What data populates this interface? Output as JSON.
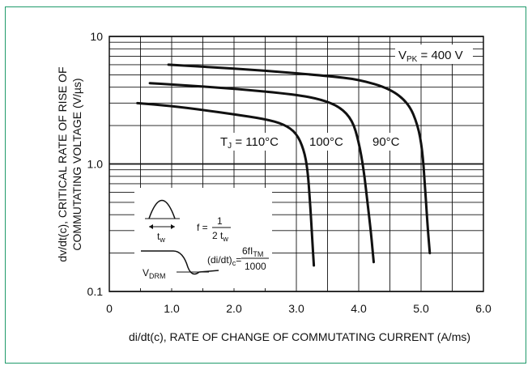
{
  "chart_data": {
    "type": "line",
    "x_scale": "linear",
    "y_scale": "log",
    "xlim": [
      0,
      6.0
    ],
    "ylim": [
      0.1,
      10
    ],
    "x_ticks": [
      "0",
      "1.0",
      "2.0",
      "3.0",
      "4.0",
      "5.0",
      "6.0"
    ],
    "y_ticks": [
      "0.1",
      "1.0",
      "10"
    ],
    "xlabel": "di/dt(c), RATE OF CHANGE OF COMMUTATING CURRENT (A/ms)",
    "ylabel_line1": "dv/dt(c), CRITICAL RATE OF RISE OF",
    "ylabel_line2": "COMMUTATING VOLTAGE (V/µs)",
    "grid": true,
    "annotation": "VPK = 400 V",
    "series": [
      {
        "name": "TJ = 110°C",
        "label_main": "T",
        "label_sub": "J",
        "label_rest": " = 110°C",
        "x": [
          0.45,
          1.0,
          1.5,
          2.0,
          2.5,
          2.8,
          3.0,
          3.12,
          3.18,
          3.22,
          3.25,
          3.28
        ],
        "y": [
          3.0,
          2.85,
          2.65,
          2.45,
          2.25,
          2.05,
          1.75,
          1.3,
          0.9,
          0.5,
          0.28,
          0.16
        ]
      },
      {
        "name": "100°C",
        "label_main": "100°C",
        "x": [
          0.65,
          1.0,
          2.0,
          3.0,
          3.4,
          3.7,
          3.9,
          4.0,
          4.08,
          4.14,
          4.2,
          4.24
        ],
        "y": [
          4.3,
          4.2,
          3.9,
          3.5,
          3.2,
          2.8,
          2.2,
          1.5,
          0.9,
          0.5,
          0.28,
          0.17
        ]
      },
      {
        "name": "90°C",
        "label_main": "90°C",
        "x": [
          0.95,
          1.5,
          2.5,
          3.5,
          4.0,
          4.5,
          4.8,
          4.95,
          5.02,
          5.06,
          5.1,
          5.14
        ],
        "y": [
          6.0,
          5.8,
          5.4,
          4.9,
          4.6,
          3.9,
          3.0,
          2.0,
          1.3,
          0.7,
          0.35,
          0.2
        ]
      }
    ]
  },
  "inset": {
    "tw_label": "t",
    "tw_sub": "w",
    "freq_lhs": "f =",
    "freq_num": "1",
    "freq_den": "2 t",
    "freq_den_sub": "w",
    "vdrm_label": "V",
    "vdrm_sub": "DRM",
    "didt_label": "(di/dt)",
    "didt_sub": "c",
    "didt_eq": "=",
    "didt_num": "6fI",
    "didt_num_sub": "TM",
    "didt_den": "1000"
  },
  "colors": {
    "frame": "#1f9a6a",
    "grid": "#111111",
    "curve": "#111111"
  }
}
